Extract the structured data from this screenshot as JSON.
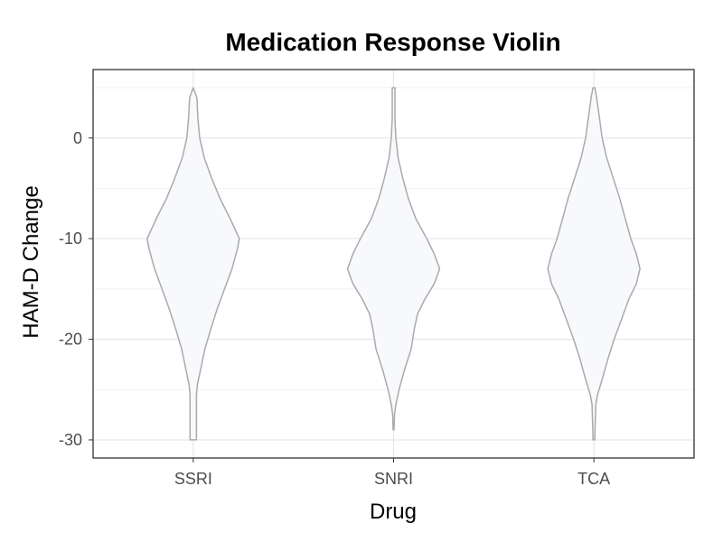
{
  "chart_data": {
    "type": "violin",
    "title": "Medication Response Violin",
    "xlabel": "Drug",
    "ylabel": "HAM-D Change",
    "categories": [
      "SSRI",
      "SNRI",
      "TCA"
    ],
    "y_ticks": [
      0,
      -10,
      -20,
      -30
    ],
    "ylim": [
      -31.8,
      6.8
    ],
    "grid": true,
    "series": [
      {
        "category": "SSRI",
        "range": [
          -30,
          5
        ],
        "densities": [
          [
            5,
            0.0
          ],
          [
            4,
            0.08
          ],
          [
            2,
            0.1
          ],
          [
            0,
            0.14
          ],
          [
            -2,
            0.24
          ],
          [
            -4,
            0.4
          ],
          [
            -6,
            0.58
          ],
          [
            -8,
            0.8
          ],
          [
            -9.5,
            0.95
          ],
          [
            -10,
            1.0
          ],
          [
            -11,
            0.96
          ],
          [
            -13,
            0.84
          ],
          [
            -15,
            0.68
          ],
          [
            -17,
            0.52
          ],
          [
            -19,
            0.38
          ],
          [
            -21,
            0.25
          ],
          [
            -23,
            0.16
          ],
          [
            -24.5,
            0.09
          ],
          [
            -25.5,
            0.07
          ],
          [
            -27,
            0.07
          ],
          [
            -29,
            0.07
          ],
          [
            -30,
            0.07
          ]
        ]
      },
      {
        "category": "SNRI",
        "range": [
          -29,
          5
        ],
        "densities": [
          [
            5,
            0.03
          ],
          [
            4,
            0.03
          ],
          [
            2,
            0.03
          ],
          [
            0,
            0.05
          ],
          [
            -2,
            0.1
          ],
          [
            -4,
            0.2
          ],
          [
            -6,
            0.32
          ],
          [
            -8,
            0.48
          ],
          [
            -10,
            0.72
          ],
          [
            -11.5,
            0.88
          ],
          [
            -13,
            1.0
          ],
          [
            -14.5,
            0.88
          ],
          [
            -16,
            0.68
          ],
          [
            -17.5,
            0.52
          ],
          [
            -19,
            0.45
          ],
          [
            -21,
            0.38
          ],
          [
            -23,
            0.24
          ],
          [
            -25,
            0.12
          ],
          [
            -26.5,
            0.05
          ],
          [
            -27.5,
            0.02
          ],
          [
            -29,
            0.01
          ]
        ]
      },
      {
        "category": "TCA",
        "range": [
          -30,
          5
        ],
        "densities": [
          [
            5,
            0.02
          ],
          [
            4,
            0.06
          ],
          [
            2,
            0.12
          ],
          [
            0,
            0.18
          ],
          [
            -2,
            0.28
          ],
          [
            -4,
            0.42
          ],
          [
            -6,
            0.56
          ],
          [
            -8,
            0.68
          ],
          [
            -10,
            0.8
          ],
          [
            -11.5,
            0.92
          ],
          [
            -13,
            1.0
          ],
          [
            -14.5,
            0.92
          ],
          [
            -16,
            0.76
          ],
          [
            -18,
            0.6
          ],
          [
            -20,
            0.44
          ],
          [
            -22,
            0.3
          ],
          [
            -24,
            0.18
          ],
          [
            -25.5,
            0.08
          ],
          [
            -26.5,
            0.04
          ],
          [
            -28,
            0.03
          ],
          [
            -29.5,
            0.02
          ],
          [
            -30,
            0.02
          ]
        ]
      }
    ],
    "colors": {
      "violin_fill": "#f8f9fd",
      "violin_stroke": "#aaaaaa",
      "grid_major": "#e3e3e3",
      "grid_minor": "#f2f2f2",
      "panel_border": "#333333",
      "tick": "#333333"
    }
  }
}
